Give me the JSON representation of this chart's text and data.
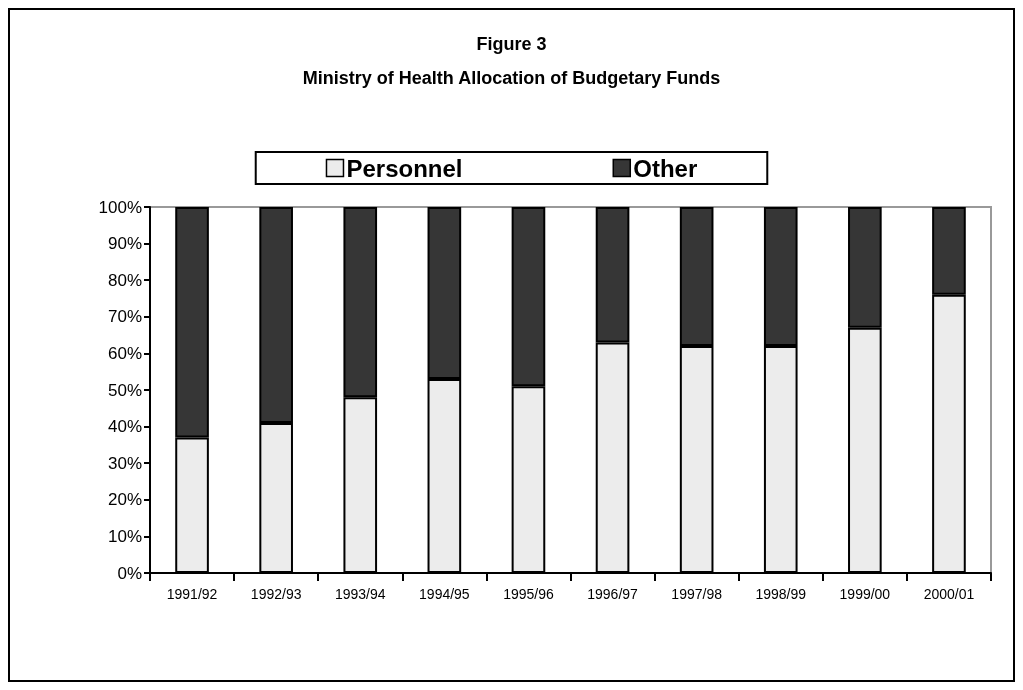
{
  "chart_data": {
    "type": "bar",
    "stacked": true,
    "title": "Figure 3",
    "subtitle": "Ministry of Health Allocation of Budgetary Funds",
    "categories": [
      "1991/92",
      "1992/93",
      "1993/94",
      "1994/95",
      "1995/96",
      "1996/97",
      "1997/98",
      "1998/99",
      "1999/00",
      "2000/01"
    ],
    "series": [
      {
        "name": "Personnel",
        "color": "#ececec",
        "values": [
          37,
          41,
          48,
          53,
          51,
          63,
          62,
          62,
          67,
          76
        ]
      },
      {
        "name": "Other",
        "color": "#363636",
        "values": [
          63,
          59,
          52,
          47,
          49,
          37,
          38,
          38,
          33,
          24
        ]
      }
    ],
    "ylim": [
      0,
      100
    ],
    "yticks": [
      {
        "value": 0,
        "label": "0%"
      },
      {
        "value": 10,
        "label": "10%"
      },
      {
        "value": 20,
        "label": "20%"
      },
      {
        "value": 30,
        "label": "30%"
      },
      {
        "value": 40,
        "label": "40%"
      },
      {
        "value": 50,
        "label": "50%"
      },
      {
        "value": 60,
        "label": "60%"
      },
      {
        "value": 70,
        "label": "70%"
      },
      {
        "value": 80,
        "label": "80%"
      },
      {
        "value": 90,
        "label": "90%"
      },
      {
        "value": 100,
        "label": "100%"
      }
    ],
    "grid": false,
    "legend": "top"
  }
}
